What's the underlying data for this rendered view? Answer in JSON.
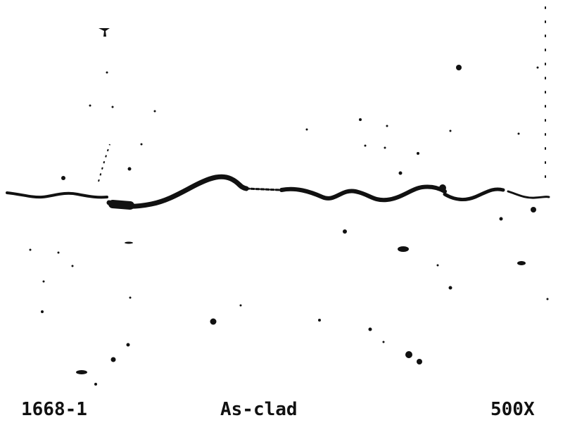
{
  "caption": {
    "specimen": "1668-1",
    "condition": "As-clad",
    "magnification": "500X"
  }
}
